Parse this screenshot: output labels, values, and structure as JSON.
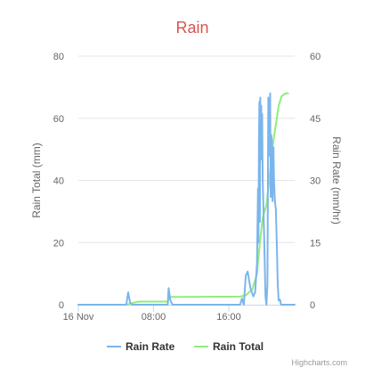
{
  "chart_data": {
    "type": "line",
    "title": "Rain",
    "title_color": "#d9534f",
    "credit": "Highcharts.com",
    "x_tick_labels": [
      "16 Nov",
      "08:00",
      "16:00"
    ],
    "x_ticks_hours": [
      0,
      8,
      16
    ],
    "x_range_hours": [
      0,
      23
    ],
    "y_left": {
      "label": "Rain Total (mm)",
      "range": [
        0,
        80
      ],
      "ticks": [
        0,
        20,
        40,
        60,
        80
      ]
    },
    "y_right": {
      "label": "Rain Rate (mm/hr)",
      "range": [
        0,
        60
      ],
      "ticks": [
        0,
        15,
        30,
        45,
        60
      ]
    },
    "grid": true,
    "legend_position": "bottom-center",
    "series": [
      {
        "name": "Rain Rate",
        "axis": "right",
        "color": "#7cb5ec",
        "points": [
          [
            0,
            0
          ],
          [
            5.1,
            0
          ],
          [
            5.3,
            3
          ],
          [
            5.5,
            0.5
          ],
          [
            5.7,
            0
          ],
          [
            9.5,
            0
          ],
          [
            9.6,
            4
          ],
          [
            9.8,
            1
          ],
          [
            10,
            0
          ],
          [
            17.2,
            0
          ],
          [
            17.4,
            1.5
          ],
          [
            17.6,
            0
          ],
          [
            17.8,
            7
          ],
          [
            18,
            8
          ],
          [
            18.3,
            4
          ],
          [
            18.6,
            2
          ],
          [
            18.8,
            3
          ],
          [
            19.0,
            10
          ],
          [
            19.1,
            28
          ],
          [
            19.15,
            15
          ],
          [
            19.2,
            40
          ],
          [
            19.25,
            49
          ],
          [
            19.3,
            20
          ],
          [
            19.35,
            50
          ],
          [
            19.4,
            37
          ],
          [
            19.45,
            48
          ],
          [
            19.5,
            35
          ],
          [
            19.55,
            46
          ],
          [
            19.6,
            30
          ],
          [
            19.7,
            22
          ],
          [
            19.8,
            12
          ],
          [
            19.9,
            2
          ],
          [
            20.0,
            0
          ],
          [
            20.1,
            5
          ],
          [
            20.2,
            50
          ],
          [
            20.25,
            46
          ],
          [
            20.3,
            36
          ],
          [
            20.35,
            45
          ],
          [
            20.4,
            51
          ],
          [
            20.45,
            26
          ],
          [
            20.5,
            41
          ],
          [
            20.6,
            39
          ],
          [
            20.65,
            25
          ],
          [
            20.7,
            35
          ],
          [
            20.75,
            38
          ],
          [
            20.8,
            30
          ],
          [
            20.9,
            25
          ],
          [
            21.0,
            23
          ],
          [
            21.1,
            15
          ],
          [
            21.2,
            5
          ],
          [
            21.3,
            1
          ],
          [
            21.45,
            1.2
          ],
          [
            21.55,
            0
          ],
          [
            23,
            0
          ]
        ]
      },
      {
        "name": "Rain Total",
        "axis": "left",
        "color": "#90ed7d",
        "points": [
          [
            0,
            0
          ],
          [
            5.2,
            0
          ],
          [
            5.6,
            0.5
          ],
          [
            6.5,
            1
          ],
          [
            9.5,
            1
          ],
          [
            9.7,
            2.5
          ],
          [
            10.5,
            2.5
          ],
          [
            17.2,
            2.6
          ],
          [
            17.8,
            3
          ],
          [
            18.5,
            5
          ],
          [
            19.0,
            10
          ],
          [
            19.3,
            20
          ],
          [
            19.6,
            28
          ],
          [
            20.0,
            32
          ],
          [
            20.3,
            40
          ],
          [
            20.6,
            50
          ],
          [
            21.0,
            58
          ],
          [
            21.3,
            64
          ],
          [
            21.6,
            67
          ],
          [
            22.0,
            68
          ],
          [
            22.3,
            68
          ]
        ]
      }
    ]
  }
}
